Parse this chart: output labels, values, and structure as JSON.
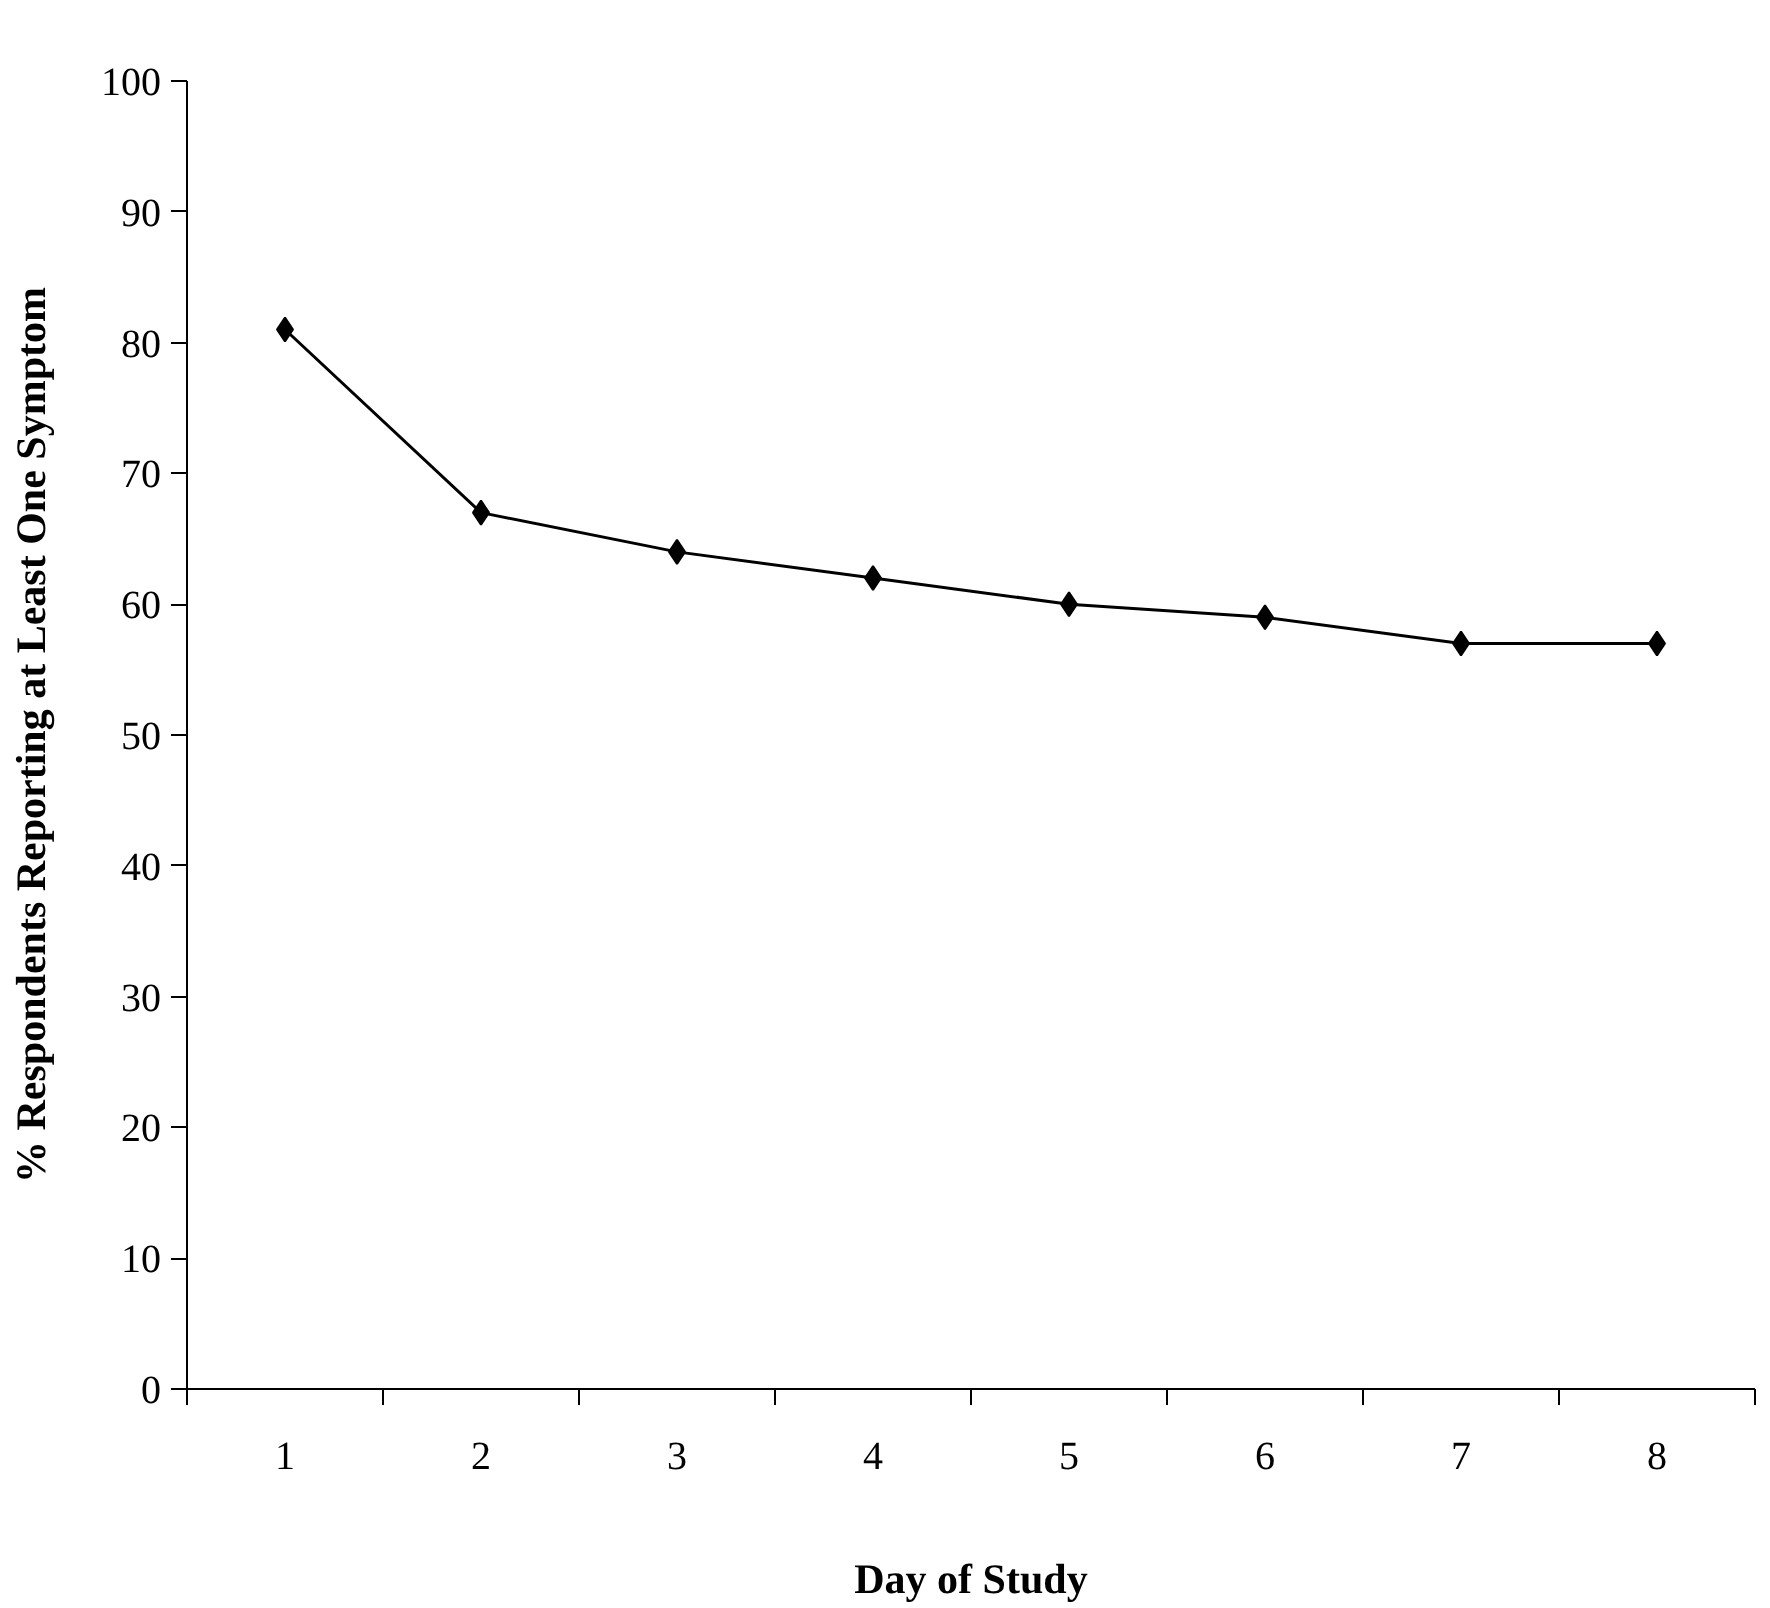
{
  "chart_data": {
    "type": "line",
    "xlabel": "Day of Study",
    "ylabel": "% Respondents Reporting at Least One Symptom",
    "categories": [
      "1",
      "2",
      "3",
      "4",
      "5",
      "6",
      "7",
      "8"
    ],
    "series": [
      {
        "color": "#000000",
        "values": [
          81,
          67,
          64,
          62,
          60,
          59,
          57,
          57
        ]
      }
    ],
    "ylim": [
      0,
      100
    ],
    "yticks": [
      0,
      10,
      20,
      30,
      40,
      50,
      60,
      70,
      80,
      90,
      100
    ],
    "marker": "diamond",
    "line_style": "solid"
  }
}
